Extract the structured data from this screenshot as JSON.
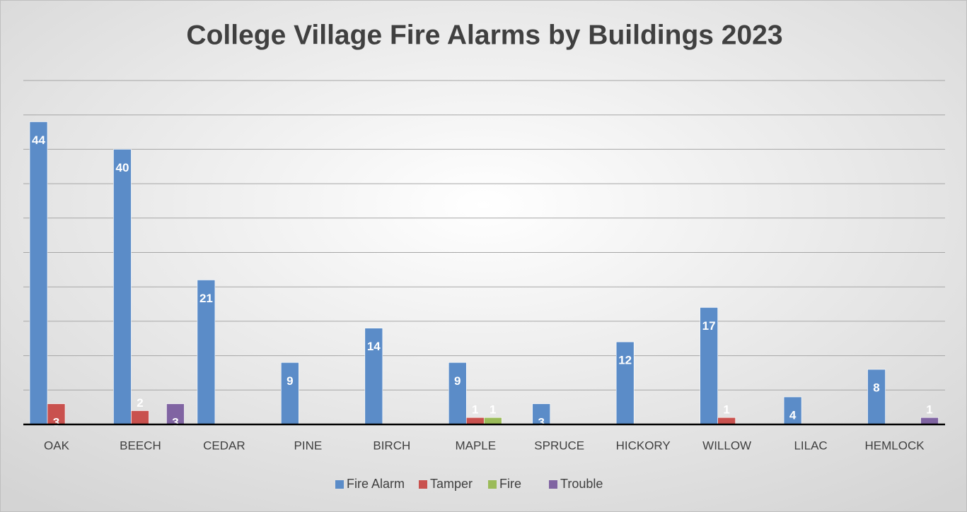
{
  "chart_data": {
    "type": "bar",
    "title": "College Village Fire Alarms by Buildings 2023",
    "categories": [
      "OAK",
      "BEECH",
      "CEDAR",
      "PINE",
      "BIRCH",
      "MAPLE",
      "SPRUCE",
      "HICKORY",
      "WILLOW",
      "LILAC",
      "HEMLOCK"
    ],
    "series": [
      {
        "name": "Fire Alarm",
        "color": "#5b8cc8",
        "values": [
          44,
          40,
          21,
          9,
          14,
          9,
          3,
          12,
          17,
          4,
          8
        ]
      },
      {
        "name": "Tamper",
        "color": "#c9514e",
        "values": [
          3,
          2,
          0,
          0,
          0,
          1,
          0,
          0,
          1,
          0,
          0
        ]
      },
      {
        "name": "Fire",
        "color": "#9bbb59",
        "values": [
          0,
          0,
          0,
          0,
          0,
          1,
          0,
          0,
          0,
          0,
          0
        ]
      },
      {
        "name": "Trouble",
        "color": "#8064a2",
        "values": [
          0,
          3,
          0,
          0,
          0,
          0,
          0,
          0,
          0,
          0,
          1
        ]
      }
    ],
    "ylim": [
      0,
      50
    ],
    "yticks": [
      0,
      5,
      10,
      15,
      20,
      25,
      30,
      35,
      40,
      45,
      50
    ],
    "grid": true,
    "legend": "bottom"
  }
}
